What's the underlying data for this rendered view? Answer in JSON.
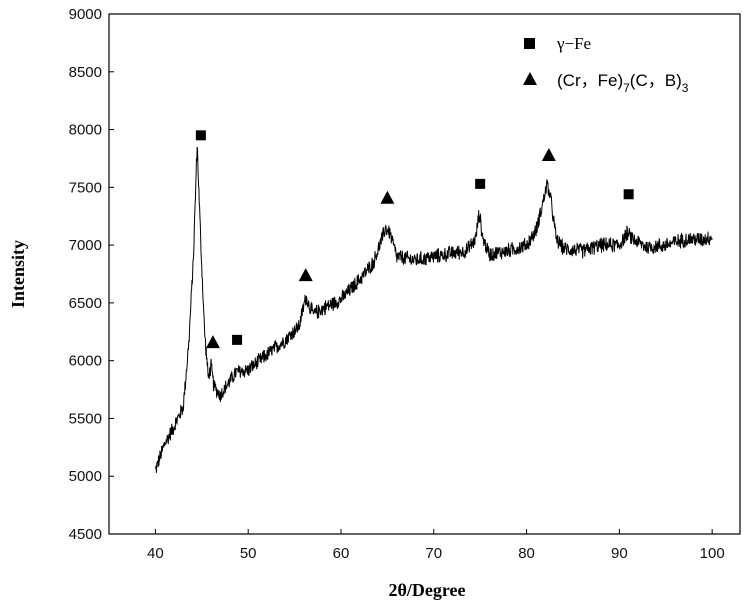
{
  "chart_data": {
    "type": "line",
    "xlabel": "2θ/Degree",
    "ylabel": "Intensity",
    "xlim": [
      35,
      103
    ],
    "ylim": [
      4500,
      9000
    ],
    "x_ticks": [
      40,
      50,
      60,
      70,
      80,
      90,
      100
    ],
    "y_ticks": [
      4500,
      5000,
      5500,
      6000,
      6500,
      7000,
      7500,
      8000,
      8500,
      9000
    ],
    "legend_position": "top-right",
    "series_color": "#000000",
    "legend": [
      {
        "marker": "square",
        "label": "γ−Fe"
      },
      {
        "marker": "triangle",
        "label_parts": {
          "a": "(Cr，Fe)",
          "sub1": "7",
          "b": "(C，B)",
          "sub2": "3"
        }
      }
    ],
    "profile": [
      [
        40.0,
        5050
      ],
      [
        41.0,
        5280
      ],
      [
        42.0,
        5430
      ],
      [
        43.0,
        5600
      ],
      [
        43.6,
        6150
      ],
      [
        44.1,
        6900
      ],
      [
        44.5,
        7880
      ],
      [
        44.9,
        7000
      ],
      [
        45.3,
        6250
      ],
      [
        45.7,
        5850
      ],
      [
        46.0,
        5950
      ],
      [
        46.3,
        5780
      ],
      [
        47.0,
        5700
      ],
      [
        48.0,
        5820
      ],
      [
        48.7,
        5900
      ],
      [
        50.0,
        5920
      ],
      [
        52.0,
        6050
      ],
      [
        54.0,
        6180
      ],
      [
        55.5,
        6300
      ],
      [
        56.2,
        6550
      ],
      [
        57.0,
        6400
      ],
      [
        58.0,
        6450
      ],
      [
        60.0,
        6530
      ],
      [
        62.0,
        6700
      ],
      [
        63.5,
        6850
      ],
      [
        64.4,
        7050
      ],
      [
        64.8,
        7150
      ],
      [
        65.3,
        7100
      ],
      [
        66.0,
        6900
      ],
      [
        68.0,
        6870
      ],
      [
        70.0,
        6900
      ],
      [
        72.0,
        6930
      ],
      [
        73.5,
        6950
      ],
      [
        74.5,
        7050
      ],
      [
        74.9,
        7280
      ],
      [
        75.3,
        7050
      ],
      [
        76.0,
        6920
      ],
      [
        78.0,
        6950
      ],
      [
        80.0,
        7000
      ],
      [
        81.0,
        7120
      ],
      [
        81.8,
        7380
      ],
      [
        82.2,
        7530
      ],
      [
        82.6,
        7400
      ],
      [
        83.2,
        7050
      ],
      [
        84.0,
        6970
      ],
      [
        86.0,
        6950
      ],
      [
        88.0,
        7000
      ],
      [
        90.0,
        7000
      ],
      [
        90.8,
        7100
      ],
      [
        91.5,
        7050
      ],
      [
        93.0,
        6980
      ],
      [
        95.0,
        7000
      ],
      [
        97.0,
        7050
      ],
      [
        99.0,
        7050
      ],
      [
        100.0,
        7070
      ]
    ],
    "noise_amplitude": 75,
    "markers": [
      {
        "type": "square",
        "x": 44.9,
        "y": 7950
      },
      {
        "type": "square",
        "x": 48.8,
        "y": 6180
      },
      {
        "type": "square",
        "x": 75.0,
        "y": 7530
      },
      {
        "type": "square",
        "x": 91.0,
        "y": 7440
      },
      {
        "type": "triangle",
        "x": 46.2,
        "y": 6160
      },
      {
        "type": "triangle",
        "x": 56.2,
        "y": 6740
      },
      {
        "type": "triangle",
        "x": 65.0,
        "y": 7410
      },
      {
        "type": "triangle",
        "x": 82.4,
        "y": 7780
      }
    ]
  }
}
